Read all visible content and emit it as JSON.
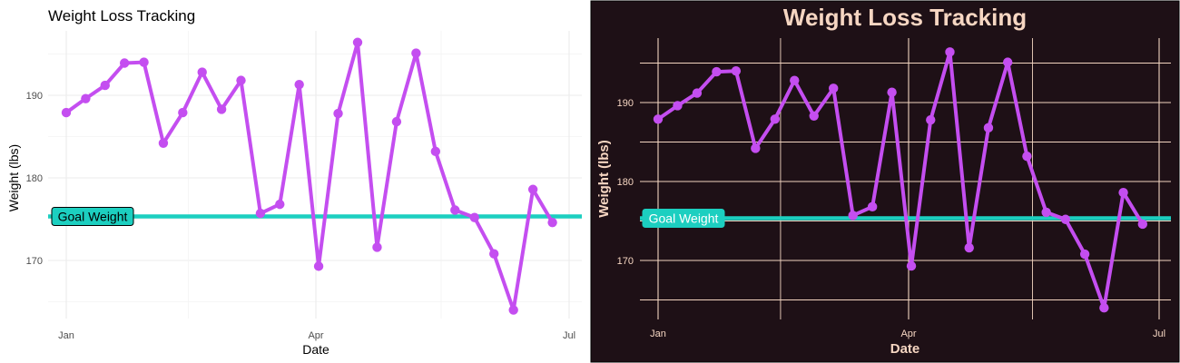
{
  "chart_data": [
    {
      "type": "line",
      "theme": "light",
      "title": "Weight Loss Tracking",
      "xlabel": "Date",
      "ylabel": "Weight (lbs)",
      "x_tick_labels": [
        "Jan",
        "Apr",
        "Jul"
      ],
      "y_ticks": [
        170,
        180,
        190
      ],
      "ylim": [
        164,
        197
      ],
      "grid": true,
      "x": [
        "2023-01-01",
        "2023-01-08",
        "2023-01-15",
        "2023-01-22",
        "2023-01-29",
        "2023-02-05",
        "2023-02-12",
        "2023-02-19",
        "2023-02-26",
        "2023-03-05",
        "2023-03-12",
        "2023-03-19",
        "2023-03-26",
        "2023-04-02",
        "2023-04-09",
        "2023-04-16",
        "2023-04-23",
        "2023-04-30",
        "2023-05-07",
        "2023-05-14",
        "2023-05-21",
        "2023-05-28",
        "2023-06-04",
        "2023-06-11",
        "2023-06-18",
        "2023-06-25"
      ],
      "series": [
        {
          "values": [
            187.9,
            189.6,
            191.2,
            193.9,
            194.0,
            184.2,
            187.9,
            192.8,
            188.3,
            191.8,
            175.7,
            176.8,
            191.3,
            169.3,
            187.8,
            196.4,
            171.6,
            186.8,
            195.1,
            183.2,
            176.1,
            175.2,
            170.8,
            164.0,
            178.6,
            174.6
          ],
          "color": "#c44ef0"
        }
      ],
      "goal_line": {
        "value": 175,
        "label": "Goal Weight",
        "color": "#1ccfc0"
      }
    },
    {
      "type": "line",
      "theme": "dark",
      "title": "Weight Loss Tracking",
      "xlabel": "Date",
      "ylabel": "Weight (lbs)",
      "x_tick_labels": [
        "Jan",
        "Apr",
        "Jul"
      ],
      "y_ticks": [
        170,
        180,
        190
      ],
      "ylim": [
        164,
        197
      ],
      "grid": true,
      "x": [
        "2023-01-01",
        "2023-01-08",
        "2023-01-15",
        "2023-01-22",
        "2023-01-29",
        "2023-02-05",
        "2023-02-12",
        "2023-02-19",
        "2023-02-26",
        "2023-03-05",
        "2023-03-12",
        "2023-03-19",
        "2023-03-26",
        "2023-04-02",
        "2023-04-09",
        "2023-04-16",
        "2023-04-23",
        "2023-04-30",
        "2023-05-07",
        "2023-05-14",
        "2023-05-21",
        "2023-05-28",
        "2023-06-04",
        "2023-06-11",
        "2023-06-18",
        "2023-06-25"
      ],
      "series": [
        {
          "values": [
            187.9,
            189.6,
            191.2,
            193.9,
            194.0,
            184.2,
            187.9,
            192.8,
            188.3,
            191.8,
            175.7,
            176.8,
            191.3,
            169.3,
            187.8,
            196.4,
            171.6,
            186.8,
            195.1,
            183.2,
            176.1,
            175.2,
            170.8,
            164.0,
            178.6,
            174.6
          ],
          "color": "#c44ef0"
        }
      ],
      "goal_line": {
        "value": 175,
        "label": "Goal Weight",
        "color": "#1ccfc0"
      }
    }
  ]
}
